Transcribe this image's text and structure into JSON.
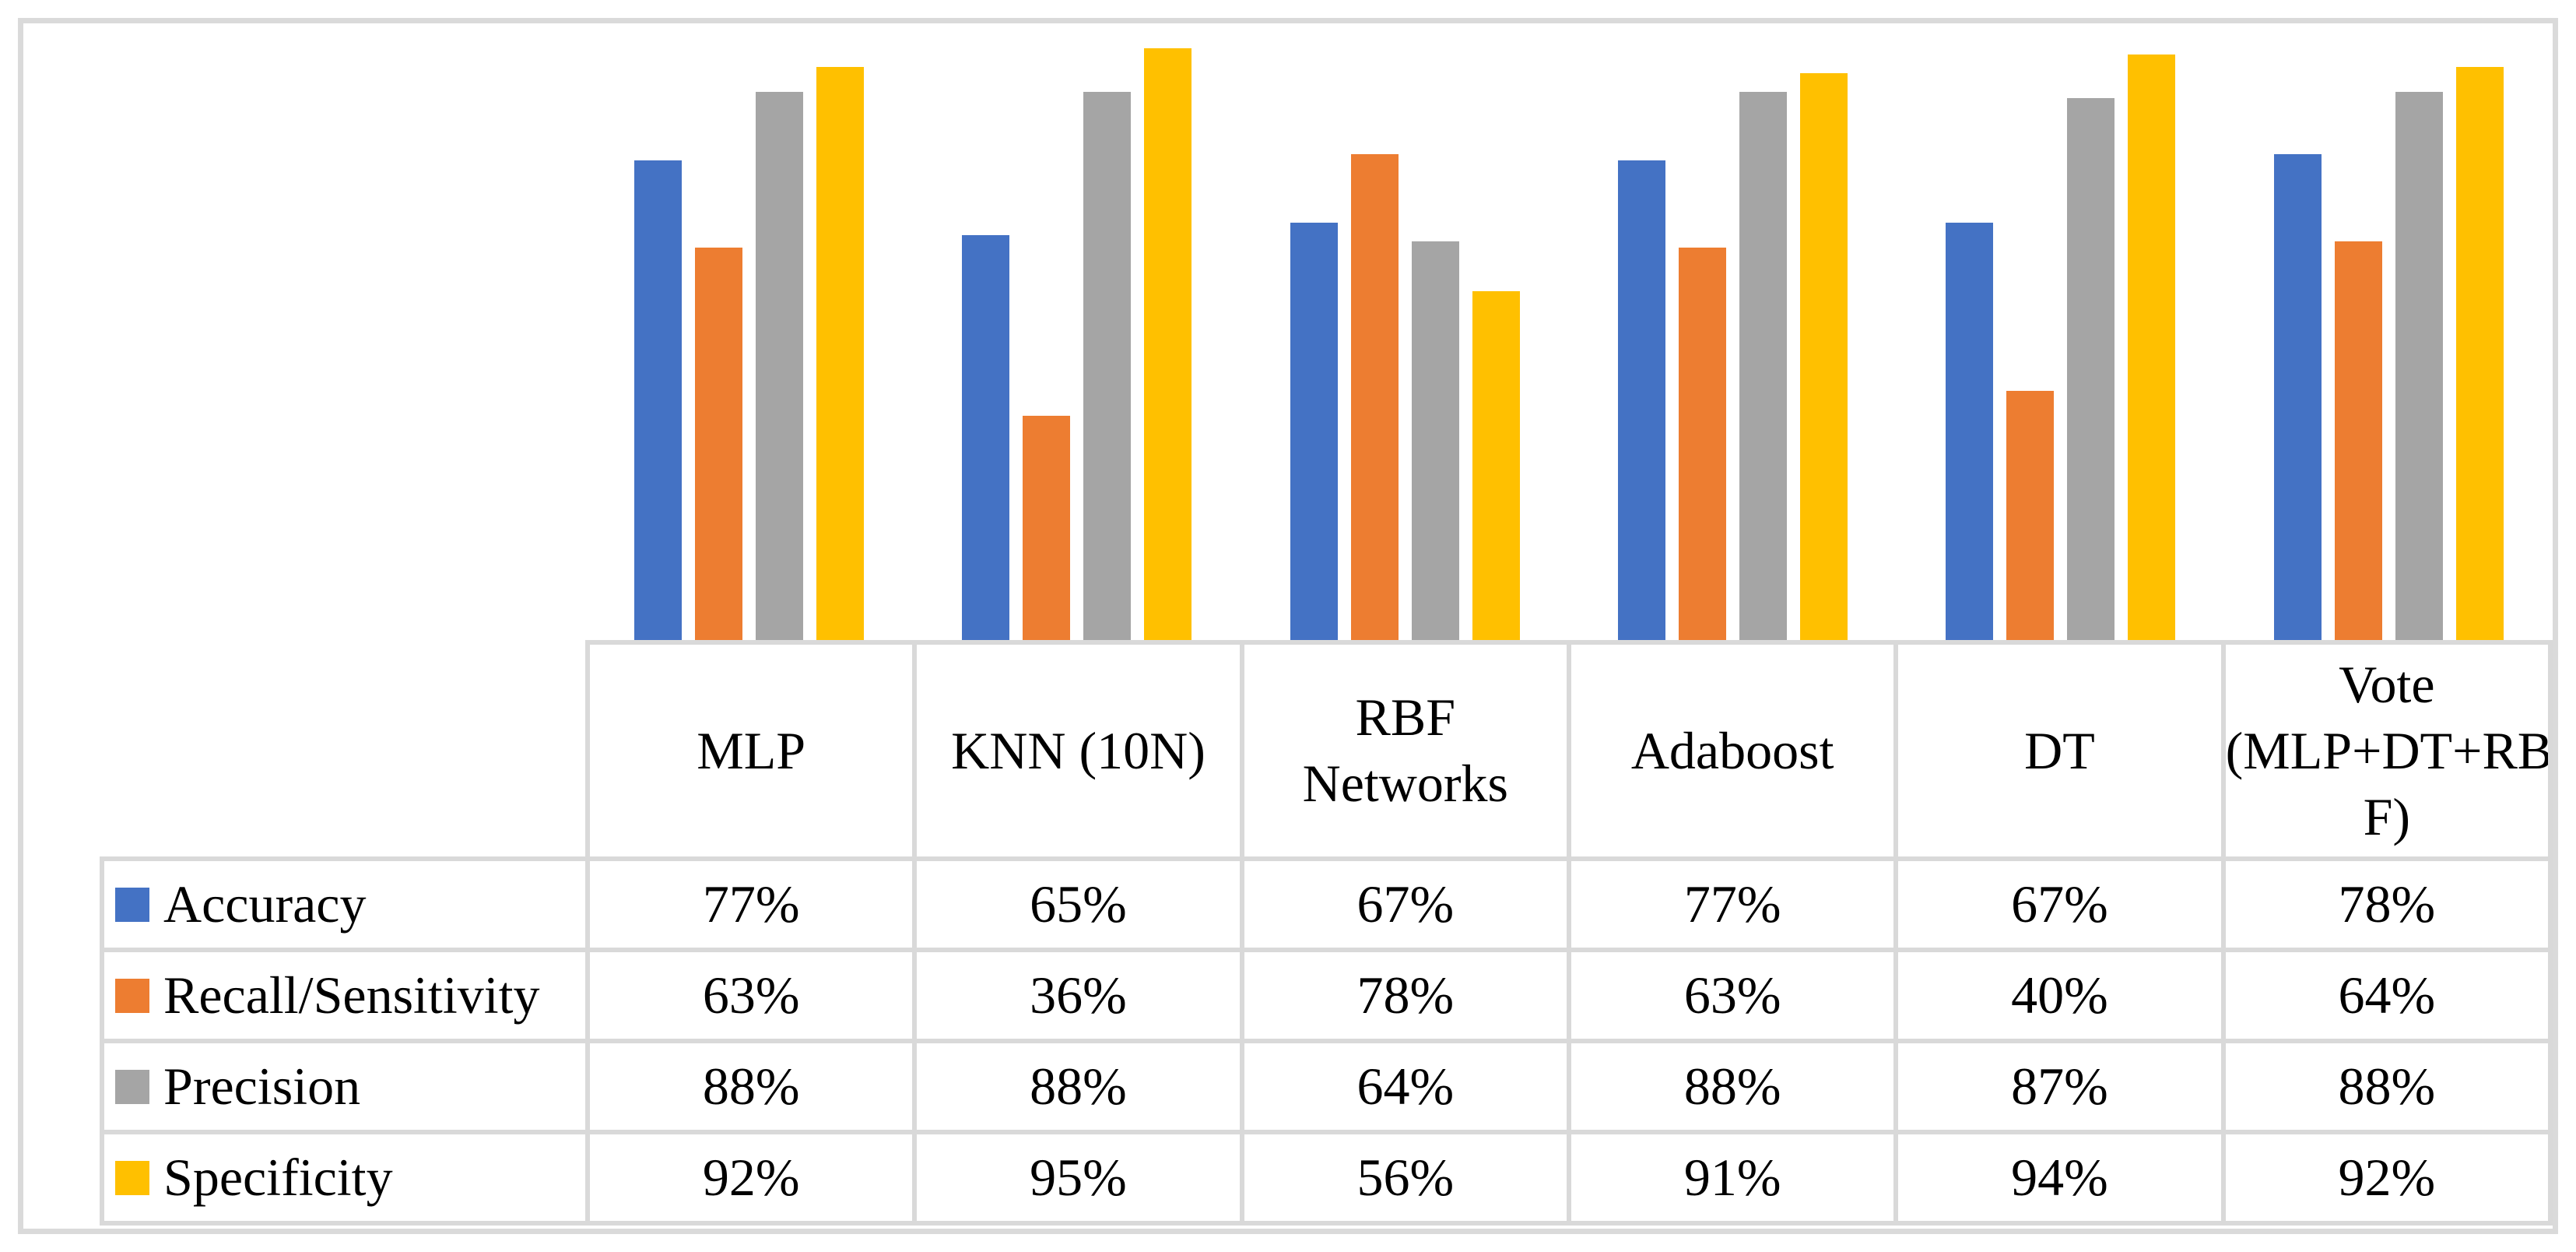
{
  "figure": {
    "kind": "clustered-column-chart-with-data-table",
    "background_color": "#FFFFFF",
    "border_color": "#DADADA",
    "table_line_color": "#D9D9D9"
  },
  "chart_data": {
    "type": "bar",
    "title": "",
    "xlabel": "",
    "ylabel": "",
    "ylim": [
      0,
      100
    ],
    "value_unit": "%",
    "gridlines": false,
    "legend_position": "data-table-left-column",
    "data_table_shown": true,
    "categories": [
      "MLP",
      "KNN (10N)",
      "RBF Networks",
      "Adaboost",
      "DT",
      "Vote (MLP+DT+RBF)"
    ],
    "category_display": [
      "MLP",
      "KNN (10N)",
      "RBF\nNetworks",
      "Adaboost",
      "DT",
      "Vote\n(MLP+DT+RB\nF)"
    ],
    "series": [
      {
        "name": "Accuracy",
        "color": "#4472C4",
        "values": [
          77,
          65,
          67,
          77,
          67,
          78
        ],
        "display": [
          "77%",
          "65%",
          "67%",
          "77%",
          "67%",
          "78%"
        ]
      },
      {
        "name": "Recall/Sensitivity",
        "color": "#ED7D31",
        "values": [
          63,
          36,
          78,
          63,
          40,
          64
        ],
        "display": [
          "63%",
          "36%",
          "78%",
          "63%",
          "40%",
          "64%"
        ]
      },
      {
        "name": "Precision",
        "color": "#A5A5A5",
        "values": [
          88,
          88,
          64,
          88,
          87,
          88
        ],
        "display": [
          "88%",
          "88%",
          "64%",
          "88%",
          "87%",
          "88%"
        ]
      },
      {
        "name": "Specificity",
        "color": "#FFC000",
        "values": [
          92,
          95,
          56,
          91,
          94,
          92
        ],
        "display": [
          "92%",
          "95%",
          "56%",
          "91%",
          "94%",
          "92%"
        ]
      }
    ]
  }
}
